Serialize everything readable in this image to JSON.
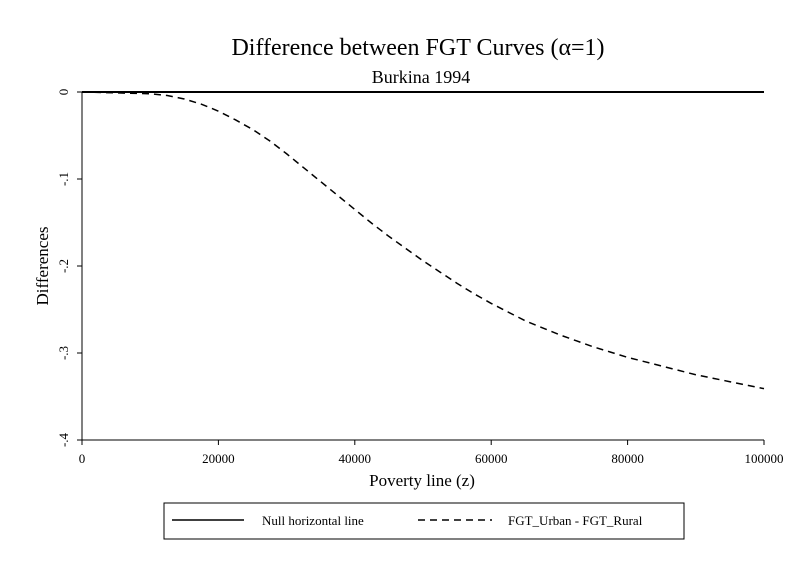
{
  "chart_data": {
    "type": "line",
    "title": "Difference between FGT Curves (α=1)",
    "subtitle": "Burkina 1994",
    "xlabel": "Poverty line (z)",
    "ylabel": "Differences",
    "xlim": [
      0,
      100000
    ],
    "ylim": [
      -0.4,
      0
    ],
    "x_ticks": [
      0,
      20000,
      40000,
      60000,
      80000,
      100000
    ],
    "x_tick_labels": [
      "0",
      "20000",
      "40000",
      "60000",
      "80000",
      "100000"
    ],
    "y_ticks": [
      0,
      -0.1,
      -0.2,
      -0.3,
      -0.4
    ],
    "y_tick_labels": [
      "0",
      "-.1",
      "-.2",
      "-.3",
      "-.4"
    ],
    "grid": false,
    "legend_position": "bottom",
    "series": [
      {
        "name": "Null horizontal line",
        "style": "solid",
        "x": [
          0,
          100000
        ],
        "y": [
          0,
          0
        ]
      },
      {
        "name": "FGT_Urban - FGT_Rural",
        "style": "dashed",
        "x": [
          0,
          5000,
          10000,
          12500,
          15000,
          17500,
          20000,
          22500,
          25000,
          27500,
          30000,
          32500,
          35000,
          37500,
          40000,
          42500,
          45000,
          47500,
          50000,
          52500,
          55000,
          57500,
          60000,
          62500,
          65000,
          67500,
          70000,
          72500,
          75000,
          77500,
          80000,
          82500,
          85000,
          87500,
          90000,
          92500,
          95000,
          97500,
          100000
        ],
        "y": [
          0,
          -0.001,
          -0.002,
          -0.004,
          -0.008,
          -0.014,
          -0.022,
          -0.032,
          -0.043,
          -0.056,
          -0.071,
          -0.087,
          -0.103,
          -0.119,
          -0.135,
          -0.151,
          -0.166,
          -0.18,
          -0.194,
          -0.207,
          -0.22,
          -0.232,
          -0.243,
          -0.253,
          -0.263,
          -0.271,
          -0.279,
          -0.286,
          -0.293,
          -0.299,
          -0.305,
          -0.31,
          -0.315,
          -0.32,
          -0.325,
          -0.329,
          -0.333,
          -0.337,
          -0.341
        ]
      }
    ]
  }
}
